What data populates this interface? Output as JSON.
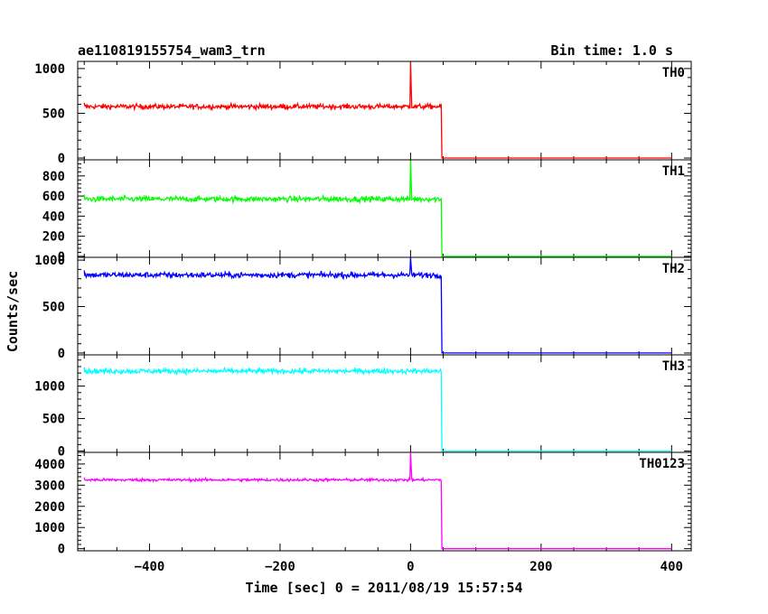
{
  "chart_data": {
    "type": "line",
    "title": "ae110819155754_wam3_trn",
    "bin_time_label": "Bin time: 1.0 s",
    "xlabel": "Time [sec] 0 = 2011/08/19 15:57:54",
    "ylabel": "Counts/sec",
    "xlim": [
      -510,
      430
    ],
    "x_ticks": [
      -400,
      -200,
      0,
      200,
      400
    ],
    "x_tick_labels": [
      "−400",
      "−200",
      "0",
      "200",
      "400"
    ],
    "grid": false,
    "cutoff_time": 48,
    "spike_time": 0,
    "data_start_time": -500,
    "data_end_time": 400,
    "panels": [
      {
        "label": "TH0",
        "color": "#ff0000",
        "ylim": [
          -20,
          1080
        ],
        "y_ticks": [
          0,
          500,
          1000
        ],
        "y_tick_labels": [
          "0",
          "500",
          "1000"
        ],
        "pre_level": 575,
        "noise": 55,
        "spike_peak": 1070,
        "post_level": 0
      },
      {
        "label": "TH1",
        "color": "#00ff00",
        "ylim": [
          -10,
          960
        ],
        "y_ticks": [
          0,
          200,
          400,
          600,
          800
        ],
        "y_tick_labels": [
          "0",
          "200",
          "400",
          "600",
          "800"
        ],
        "pre_level": 570,
        "noise": 55,
        "spike_peak": 950,
        "post_level": 0
      },
      {
        "label": "TH2",
        "color": "#0000ff",
        "ylim": [
          -20,
          1030
        ],
        "y_ticks": [
          0,
          500,
          1000
        ],
        "y_tick_labels": [
          "0",
          "500",
          "1000"
        ],
        "pre_level": 840,
        "noise": 60,
        "spike_peak": 1040,
        "post_level": 0
      },
      {
        "label": "TH3",
        "color": "#00ffff",
        "ylim": [
          -20,
          1480
        ],
        "y_ticks": [
          0,
          500,
          1000
        ],
        "y_tick_labels": [
          "0",
          "500",
          "1000"
        ],
        "pre_level": 1230,
        "noise": 75,
        "spike_peak": 1250,
        "post_level": 0
      },
      {
        "label": "TH0123",
        "color": "#ff00ff",
        "ylim": [
          -100,
          4550
        ],
        "y_ticks": [
          0,
          1000,
          2000,
          3000,
          4000
        ],
        "y_tick_labels": [
          "0",
          "1000",
          "2000",
          "3000",
          "4000"
        ],
        "pre_level": 3250,
        "noise": 130,
        "spike_peak": 4550,
        "post_level": 0
      }
    ]
  }
}
